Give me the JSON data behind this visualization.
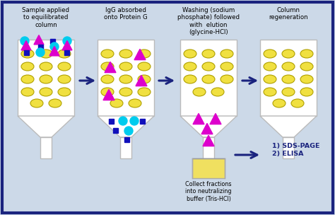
{
  "background_color": "#ccd9e8",
  "border_color": "#1a237e",
  "titles": [
    "Sample applied\nto equilibrated\ncolumn",
    "IgG absorbed\nonto Protein G",
    "Washing (sodium\nphosphate) followed\nwith  elution\n(glycine-HCl)",
    "Column\nregeneration"
  ],
  "arrow_color": "#1a237e",
  "yellow_color": "#f0e040",
  "yellow_edge": "#b0a000",
  "cyan_color": "#00ccee",
  "magenta_color": "#dd00cc",
  "blue_color": "#1111bb",
  "col_body_color": "#ffffff",
  "col_edge_color": "#bbbbbb",
  "result_label": "1) SDS-PAGE\n2) ELISA",
  "collect_label": "Collect fractions\ninto neutralizing\nbuffer (Tris-HCl)"
}
